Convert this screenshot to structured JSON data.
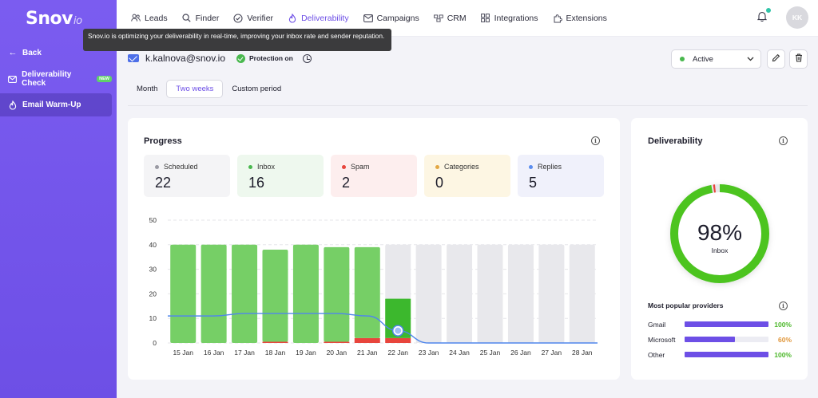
{
  "brand": {
    "logo_main": "Snov",
    "logo_suffix": "io"
  },
  "sidebar": {
    "back_label": "Back",
    "items": [
      {
        "label": "Deliverability Check",
        "badge": "NEW"
      },
      {
        "label": "Email Warm-Up"
      }
    ]
  },
  "nav": {
    "items": [
      {
        "label": "Leads",
        "icon": "people-icon"
      },
      {
        "label": "Finder",
        "icon": "search-icon"
      },
      {
        "label": "Verifier",
        "icon": "check-circle-icon"
      },
      {
        "label": "Deliverability",
        "icon": "flame-icon",
        "active": true
      },
      {
        "label": "Campaigns",
        "icon": "mail-icon"
      },
      {
        "label": "CRM",
        "icon": "crm-icon"
      },
      {
        "label": "Integrations",
        "icon": "grid-icon"
      },
      {
        "label": "Extensions",
        "icon": "puzzle-icon"
      }
    ],
    "avatar_initials": "KK"
  },
  "tooltip": {
    "text": "Snov.io is optimizing your deliverability in real-time, improving your inbox rate and sender reputation."
  },
  "account": {
    "email": "k.kalnova@snov.io",
    "protection_label": "Protection on",
    "status_value": "Active"
  },
  "tabs": [
    {
      "label": "Month"
    },
    {
      "label": "Two weeks",
      "active": true
    },
    {
      "label": "Custom period"
    }
  ],
  "progress": {
    "title": "Progress",
    "stats": [
      {
        "label": "Scheduled",
        "value": "22",
        "bg": "#f4f4f6",
        "dot": "#9a9aa3"
      },
      {
        "label": "Inbox",
        "value": "16",
        "bg": "#eef8ee",
        "dot": "#49b84e"
      },
      {
        "label": "Spam",
        "value": "2",
        "bg": "#fdeeee",
        "dot": "#e8453c"
      },
      {
        "label": "Categories",
        "value": "0",
        "bg": "#fdf6e3",
        "dot": "#e3a743"
      },
      {
        "label": "Replies",
        "value": "5",
        "bg": "#f0f1fb",
        "dot": "#5b8def"
      }
    ]
  },
  "chart_data": {
    "type": "bar",
    "categories": [
      "15 Jan",
      "16 Jan",
      "17 Jan",
      "18 Jan",
      "19 Jan",
      "20 Jan",
      "21 Jan",
      "22 Jan",
      "23 Jan",
      "24 Jan",
      "25 Jan",
      "26 Jan",
      "27 Jan",
      "28 Jan"
    ],
    "ylim": [
      0,
      50
    ],
    "yticks": [
      0,
      10,
      20,
      30,
      40,
      50
    ],
    "series": [
      {
        "values": [
          0,
          0,
          0,
          0.5,
          0,
          0.5,
          2,
          2,
          0,
          0,
          0,
          0,
          0,
          0
        ],
        "color": "#e8453c"
      },
      {
        "values": [
          40,
          40,
          40,
          37.5,
          40,
          38.5,
          37,
          16,
          0,
          0,
          0,
          0,
          0,
          0
        ],
        "color": "#76cf66"
      },
      {
        "values": [
          0,
          0,
          0,
          0,
          0,
          0,
          0,
          22,
          40,
          40,
          40,
          40,
          40,
          40
        ],
        "color": "#e8e8ec"
      }
    ],
    "line": {
      "values": [
        11,
        11,
        12,
        12,
        12,
        12,
        11,
        5,
        0,
        0,
        0,
        0,
        0,
        0
      ],
      "color": "#4f86ec",
      "marker_index": 7
    },
    "highlight_bar": {
      "index": 7,
      "color": "#3cb82d"
    },
    "grid": true
  },
  "deliverability": {
    "title": "Deliverability",
    "percent": 98,
    "percent_text": "98%",
    "sub_label": "Inbox",
    "ring_color": "#4cc41f",
    "ring_spam_color": "#e8453c"
  },
  "providers": {
    "title": "Most popular providers",
    "items": [
      {
        "name": "Gmail",
        "pct_text": "100%",
        "pct": 1.0,
        "color": "#4cb82a"
      },
      {
        "name": "Microsoft",
        "pct_text": "60%",
        "pct": 0.6,
        "color": "#e0963a"
      },
      {
        "name": "Other",
        "pct_text": "100%",
        "pct": 1.0,
        "color": "#4cb82a"
      }
    ]
  }
}
